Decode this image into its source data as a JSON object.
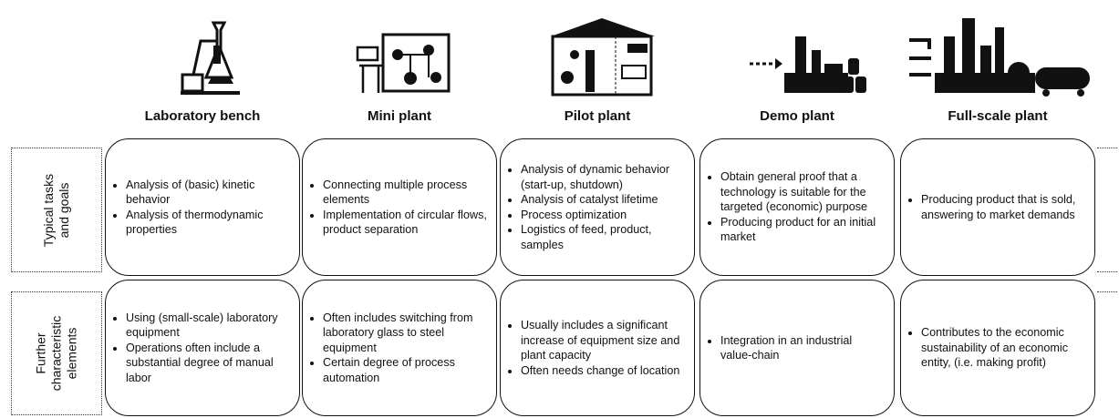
{
  "columns": [
    {
      "title": "Laboratory bench"
    },
    {
      "title": "Mini plant"
    },
    {
      "title": "Pilot plant"
    },
    {
      "title": "Demo plant"
    },
    {
      "title": "Full-scale plant"
    }
  ],
  "rows": [
    {
      "label": [
        "Typical tasks",
        "and goals"
      ],
      "cells": [
        [
          "Analysis of (basic) kinetic behavior",
          "Analysis of thermodynamic properties"
        ],
        [
          "Connecting multiple process elements",
          "Implementation of circular flows, product separation"
        ],
        [
          "Analysis of dynamic behavior (start-up, shutdown)",
          "Analysis of catalyst lifetime",
          "Process optimization",
          "Logistics of feed, product, samples"
        ],
        [
          "Obtain general proof that a technology is suitable for the targeted (economic) purpose",
          "Producing product for an initial market"
        ],
        [
          "Producing product that is sold, answering to market demands"
        ]
      ]
    },
    {
      "label": [
        "Further",
        "characteristic",
        "elements"
      ],
      "cells": [
        [
          "Using (small-scale) laboratory equipment",
          "Operations often include a substantial degree of manual labor"
        ],
        [
          "Often includes switching from laboratory glass to steel equipment",
          "Certain degree of process automation"
        ],
        [
          "Usually includes a significant increase of equipment size and plant capacity",
          "Often needs change of location"
        ],
        [
          "Integration in an industrial value-chain"
        ],
        [
          "Contributes to the economic sustainability of an economic entity, (i.e. making profit)"
        ]
      ]
    }
  ]
}
